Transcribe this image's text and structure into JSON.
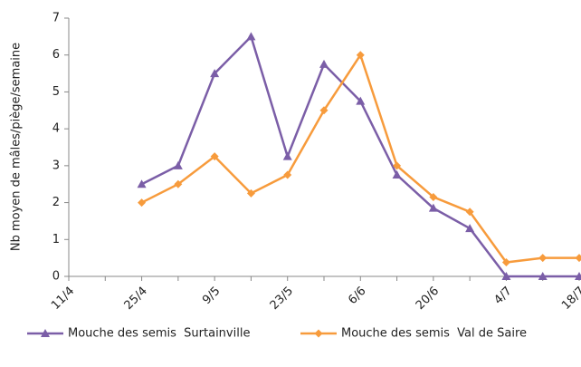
{
  "chart_data": {
    "type": "line",
    "y_label": "Nb moyen de mâles/piège/semaine",
    "categories": [
      "11/4",
      null,
      "25/4",
      null,
      "9/5",
      null,
      "23/5",
      null,
      "6/6",
      null,
      "20/6",
      null,
      "4/7",
      null,
      "18/7"
    ],
    "series": [
      {
        "name": "Mouche des semis  Surtainville",
        "color": "#7b5ea7",
        "marker": "triangle",
        "values": [
          null,
          null,
          2.5,
          3.0,
          5.5,
          6.5,
          3.25,
          5.75,
          4.75,
          2.75,
          1.85,
          1.3,
          0,
          0,
          0
        ]
      },
      {
        "name": "Mouche des semis  Val de Saire",
        "color": "#f79b3c",
        "marker": "diamond",
        "values": [
          null,
          null,
          2.0,
          2.5,
          3.25,
          2.25,
          2.75,
          4.5,
          6.0,
          3.0,
          2.15,
          1.75,
          0.38,
          0.5,
          0.5
        ]
      }
    ],
    "ylim": [
      0,
      7
    ],
    "yticks": [
      0,
      1,
      2,
      3,
      4,
      5,
      6,
      7
    ],
    "grid": false,
    "legend": "bottom"
  }
}
